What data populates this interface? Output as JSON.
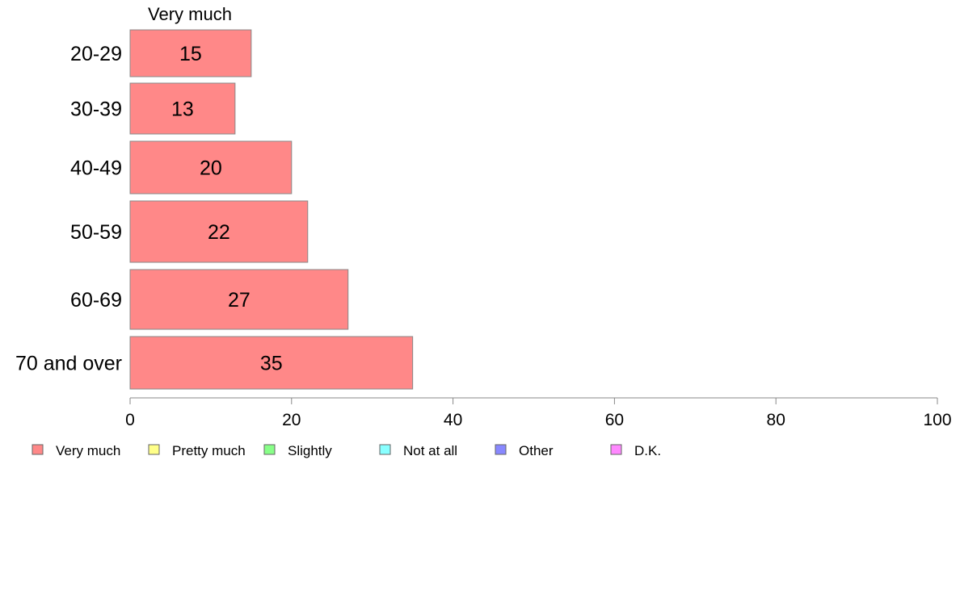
{
  "chart_data": {
    "type": "bar",
    "orientation": "horizontal",
    "column_header": "Very much",
    "categories": [
      "20-29",
      "30-39",
      "40-49",
      "50-59",
      "60-69",
      "70 and over"
    ],
    "series": [
      {
        "name": "Very much",
        "values": [
          15,
          13,
          20,
          22,
          27,
          35
        ],
        "color": "#ff8888"
      }
    ],
    "xlim": [
      0,
      100
    ],
    "xticks": [
      0,
      20,
      40,
      60,
      80,
      100
    ],
    "grid": false,
    "legend": {
      "placement": "bottom-left",
      "items": [
        {
          "label": "Very much",
          "color": "#ff8888"
        },
        {
          "label": "Pretty much",
          "color": "#ffff88"
        },
        {
          "label": "Slightly",
          "color": "#88ff88"
        },
        {
          "label": "Not at all",
          "color": "#88ffff"
        },
        {
          "label": "Other",
          "color": "#8888ff"
        },
        {
          "label": "D.K.",
          "color": "#ff88ff"
        }
      ]
    },
    "bar_edge_color": "#888888",
    "axis_color": "#888888"
  }
}
